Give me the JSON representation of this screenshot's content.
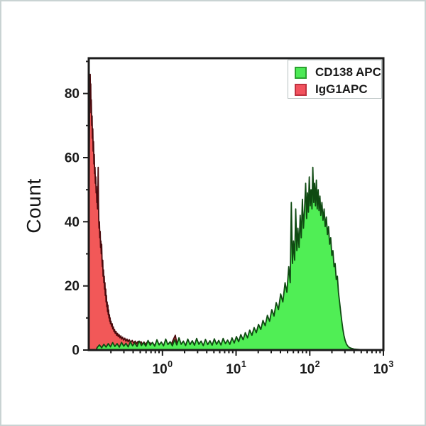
{
  "figure": {
    "background": "#ffffff",
    "frame_color": "#c9d3d3"
  },
  "legend": {
    "position": "top-right",
    "items": [
      {
        "label": "CD138 APC",
        "swatch_fill": "#4ce955",
        "swatch_border": "#2aa12f"
      },
      {
        "label": "IgG1APC",
        "swatch_fill": "#f2525e",
        "swatch_border": "#bf3240"
      }
    ]
  },
  "chart_data": {
    "type": "area",
    "subtype": "flow-cytometry-histogram",
    "title": "",
    "xlabel": "",
    "ylabel": "Count",
    "x_scale": "log10",
    "xlim_decades": [
      -1,
      3
    ],
    "ylim": [
      0,
      91
    ],
    "grid": false,
    "legend_position": "top-right",
    "axis_color": "#1c1c1c",
    "x_ticks": [
      {
        "base": "10",
        "exp": "0",
        "decade": 0
      },
      {
        "base": "10",
        "exp": "1",
        "decade": 1
      },
      {
        "base": "10",
        "exp": "2",
        "decade": 2
      },
      {
        "base": "10",
        "exp": "3",
        "decade": 3
      }
    ],
    "y_ticks": [
      {
        "value": 0,
        "label": "0"
      },
      {
        "value": 20,
        "label": "20"
      },
      {
        "value": 40,
        "label": "40"
      },
      {
        "value": 60,
        "label": "60"
      },
      {
        "value": 80,
        "label": "80"
      }
    ],
    "y_minor_ticks": [
      10,
      30,
      50,
      70,
      90
    ],
    "series": [
      {
        "name": "IgG1APC",
        "fill": "#f25858",
        "stroke": "#4a0a0d",
        "peak_value": 86,
        "peak_decade": -0.98,
        "points": [
          [
            -1.0,
            0
          ],
          [
            -0.996,
            40
          ],
          [
            -0.992,
            62
          ],
          [
            -0.988,
            76
          ],
          [
            -0.985,
            82
          ],
          [
            -0.981,
            86
          ],
          [
            -0.977,
            79
          ],
          [
            -0.973,
            83
          ],
          [
            -0.969,
            74
          ],
          [
            -0.965,
            78
          ],
          [
            -0.96,
            70
          ],
          [
            -0.955,
            73
          ],
          [
            -0.95,
            66
          ],
          [
            -0.945,
            69
          ],
          [
            -0.94,
            62
          ],
          [
            -0.935,
            65
          ],
          [
            -0.93,
            58
          ],
          [
            -0.925,
            61
          ],
          [
            -0.92,
            55
          ],
          [
            -0.915,
            57
          ],
          [
            -0.91,
            52
          ],
          [
            -0.905,
            54
          ],
          [
            -0.9,
            49
          ],
          [
            -0.895,
            51
          ],
          [
            -0.89,
            46
          ],
          [
            -0.885,
            48
          ],
          [
            -0.88,
            44
          ],
          [
            -0.876,
            50
          ],
          [
            -0.872,
            57
          ],
          [
            -0.868,
            46
          ],
          [
            -0.864,
            41
          ],
          [
            -0.86,
            38
          ],
          [
            -0.855,
            40
          ],
          [
            -0.85,
            35
          ],
          [
            -0.845,
            37
          ],
          [
            -0.84,
            32
          ],
          [
            -0.835,
            34
          ],
          [
            -0.83,
            30
          ],
          [
            -0.825,
            33
          ],
          [
            -0.82,
            28
          ],
          [
            -0.815,
            26
          ],
          [
            -0.81,
            28
          ],
          [
            -0.805,
            23
          ],
          [
            -0.8,
            25
          ],
          [
            -0.795,
            21
          ],
          [
            -0.79,
            23
          ],
          [
            -0.785,
            19
          ],
          [
            -0.78,
            21
          ],
          [
            -0.775,
            17
          ],
          [
            -0.77,
            19
          ],
          [
            -0.765,
            15
          ],
          [
            -0.76,
            17
          ],
          [
            -0.755,
            13.5
          ],
          [
            -0.75,
            15
          ],
          [
            -0.745,
            12
          ],
          [
            -0.74,
            14
          ],
          [
            -0.735,
            11
          ],
          [
            -0.73,
            12.5
          ],
          [
            -0.725,
            10
          ],
          [
            -0.72,
            11
          ],
          [
            -0.715,
            9
          ],
          [
            -0.71,
            10
          ],
          [
            -0.705,
            8.2
          ],
          [
            -0.698,
            9.0
          ],
          [
            -0.69,
            7.4
          ],
          [
            -0.682,
            8.2
          ],
          [
            -0.674,
            6.6
          ],
          [
            -0.666,
            7.2
          ],
          [
            -0.658,
            5.8
          ],
          [
            -0.65,
            6.4
          ],
          [
            -0.64,
            5.2
          ],
          [
            -0.63,
            5.8
          ],
          [
            -0.62,
            4.6
          ],
          [
            -0.61,
            5.2
          ],
          [
            -0.6,
            4.2
          ],
          [
            -0.588,
            4.8
          ],
          [
            -0.576,
            3.8
          ],
          [
            -0.564,
            4.4
          ],
          [
            -0.552,
            3.4
          ],
          [
            -0.54,
            4.0
          ],
          [
            -0.525,
            3.1
          ],
          [
            -0.51,
            3.7
          ],
          [
            -0.495,
            2.8
          ],
          [
            -0.48,
            3.4
          ],
          [
            -0.465,
            2.6
          ],
          [
            -0.45,
            3.2
          ],
          [
            -0.43,
            2.4
          ],
          [
            -0.41,
            3.0
          ],
          [
            -0.39,
            2.2
          ],
          [
            -0.37,
            2.8
          ],
          [
            -0.35,
            2.0
          ],
          [
            -0.33,
            2.7
          ],
          [
            -0.31,
            1.9
          ],
          [
            -0.29,
            2.6
          ],
          [
            -0.27,
            1.8
          ],
          [
            -0.25,
            2.5
          ],
          [
            -0.23,
            1.7
          ],
          [
            -0.21,
            2.4
          ],
          [
            -0.19,
            1.6
          ],
          [
            -0.17,
            2.3
          ],
          [
            -0.15,
            1.5
          ],
          [
            -0.13,
            2.2
          ],
          [
            -0.11,
            1.4
          ],
          [
            -0.09,
            2.1
          ],
          [
            -0.07,
            1.3
          ],
          [
            -0.05,
            2.0
          ],
          [
            -0.03,
            1.2
          ],
          [
            -0.01,
            1.9
          ],
          [
            0.01,
            1.1
          ],
          [
            0.035,
            1.8
          ],
          [
            0.06,
            1.0
          ],
          [
            0.085,
            1.9
          ],
          [
            0.11,
            1.1
          ],
          [
            0.135,
            2.6
          ],
          [
            0.16,
            3.8
          ],
          [
            0.175,
            4.6
          ],
          [
            0.19,
            2.8
          ],
          [
            0.21,
            1.5
          ],
          [
            0.235,
            2.3
          ],
          [
            0.26,
            1.1
          ],
          [
            0.285,
            1.9
          ],
          [
            0.31,
            0.9
          ],
          [
            0.34,
            1.5
          ],
          [
            0.37,
            0.7
          ],
          [
            0.4,
            1.1
          ],
          [
            0.43,
            0.5
          ],
          [
            0.465,
            0.2
          ],
          [
            0.5,
            0
          ]
        ]
      },
      {
        "name": "CD138 APC",
        "fill": "#50ee55",
        "stroke": "#0f4a12",
        "peak_value": 57,
        "peak_decade": 2.04,
        "points": [
          [
            -0.9,
            0
          ],
          [
            -0.885,
            0.8
          ],
          [
            -0.855,
            1.6
          ],
          [
            -0.825,
            0.7
          ],
          [
            -0.795,
            1.8
          ],
          [
            -0.765,
            0.9
          ],
          [
            -0.735,
            2.0
          ],
          [
            -0.705,
            1.0
          ],
          [
            -0.675,
            2.3
          ],
          [
            -0.645,
            1.1
          ],
          [
            -0.615,
            2.0
          ],
          [
            -0.585,
            0.9
          ],
          [
            -0.555,
            2.4
          ],
          [
            -0.525,
            1.2
          ],
          [
            -0.495,
            2.1
          ],
          [
            -0.465,
            1.0
          ],
          [
            -0.435,
            2.6
          ],
          [
            -0.405,
            1.3
          ],
          [
            -0.375,
            2.2
          ],
          [
            -0.345,
            1.1
          ],
          [
            -0.315,
            2.8
          ],
          [
            -0.285,
            1.4
          ],
          [
            -0.255,
            2.3
          ],
          [
            -0.225,
            1.2
          ],
          [
            -0.195,
            3.0
          ],
          [
            -0.165,
            1.5
          ],
          [
            -0.135,
            2.4
          ],
          [
            -0.105,
            1.2
          ],
          [
            -0.075,
            3.2
          ],
          [
            -0.045,
            1.6
          ],
          [
            -0.015,
            2.5
          ],
          [
            0.015,
            1.3
          ],
          [
            0.045,
            3.4
          ],
          [
            0.075,
            1.7
          ],
          [
            0.105,
            2.6
          ],
          [
            0.135,
            1.3
          ],
          [
            0.165,
            3.2
          ],
          [
            0.195,
            1.6
          ],
          [
            0.225,
            3.8
          ],
          [
            0.255,
            1.8
          ],
          [
            0.285,
            2.8
          ],
          [
            0.315,
            1.4
          ],
          [
            0.345,
            3.4
          ],
          [
            0.375,
            1.7
          ],
          [
            0.405,
            2.9
          ],
          [
            0.435,
            1.5
          ],
          [
            0.465,
            3.6
          ],
          [
            0.495,
            1.8
          ],
          [
            0.525,
            2.8
          ],
          [
            0.555,
            1.4
          ],
          [
            0.585,
            3.3
          ],
          [
            0.615,
            1.7
          ],
          [
            0.645,
            2.9
          ],
          [
            0.675,
            1.5
          ],
          [
            0.705,
            3.5
          ],
          [
            0.735,
            1.8
          ],
          [
            0.765,
            3.0
          ],
          [
            0.795,
            1.6
          ],
          [
            0.825,
            3.6
          ],
          [
            0.855,
            2.0
          ],
          [
            0.885,
            3.1
          ],
          [
            0.915,
            1.8
          ],
          [
            0.945,
            3.8
          ],
          [
            0.975,
            2.2
          ],
          [
            1.005,
            4.2
          ],
          [
            1.035,
            2.6
          ],
          [
            1.065,
            4.8
          ],
          [
            1.095,
            3.2
          ],
          [
            1.125,
            5.4
          ],
          [
            1.155,
            3.8
          ],
          [
            1.185,
            6.2
          ],
          [
            1.215,
            4.6
          ],
          [
            1.245,
            7.0
          ],
          [
            1.275,
            5.4
          ],
          [
            1.305,
            8.0
          ],
          [
            1.335,
            6.4
          ],
          [
            1.365,
            9.2
          ],
          [
            1.395,
            7.6
          ],
          [
            1.425,
            10.8
          ],
          [
            1.455,
            9.0
          ],
          [
            1.485,
            12.6
          ],
          [
            1.515,
            10.6
          ],
          [
            1.545,
            14.8
          ],
          [
            1.575,
            12.6
          ],
          [
            1.605,
            17.5
          ],
          [
            1.635,
            15.0
          ],
          [
            1.665,
            21.0
          ],
          [
            1.69,
            18.0
          ],
          [
            1.715,
            26.0
          ],
          [
            1.735,
            21.0
          ],
          [
            1.75,
            46.0
          ],
          [
            1.765,
            27.0
          ],
          [
            1.78,
            34.0
          ],
          [
            1.795,
            28.0
          ],
          [
            1.81,
            44.0
          ],
          [
            1.825,
            31.0
          ],
          [
            1.84,
            38.0
          ],
          [
            1.855,
            32.0
          ],
          [
            1.87,
            42.0
          ],
          [
            1.885,
            35.0
          ],
          [
            1.9,
            47.0
          ],
          [
            1.915,
            38.0
          ],
          [
            1.93,
            44.0
          ],
          [
            1.945,
            52.0
          ],
          [
            1.958,
            41.0
          ],
          [
            1.97,
            49.0
          ],
          [
            1.982,
            43.0
          ],
          [
            1.994,
            54.0
          ],
          [
            2.006,
            45.0
          ],
          [
            2.018,
            50.0
          ],
          [
            2.03,
            44.0
          ],
          [
            2.042,
            57.0
          ],
          [
            2.054,
            46.0
          ],
          [
            2.066,
            52.0
          ],
          [
            2.078,
            45.0
          ],
          [
            2.09,
            53.0
          ],
          [
            2.102,
            44.0
          ],
          [
            2.114,
            50.0
          ],
          [
            2.126,
            43.5
          ],
          [
            2.138,
            48.0
          ],
          [
            2.15,
            42.0
          ],
          [
            2.165,
            46.0
          ],
          [
            2.18,
            40.5
          ],
          [
            2.195,
            44.0
          ],
          [
            2.21,
            38.5
          ],
          [
            2.225,
            41.5
          ],
          [
            2.24,
            36.0
          ],
          [
            2.255,
            38.5
          ],
          [
            2.27,
            33.0
          ],
          [
            2.285,
            35.0
          ],
          [
            2.3,
            29.5
          ],
          [
            2.315,
            31.0
          ],
          [
            2.33,
            26.0
          ],
          [
            2.345,
            27.0
          ],
          [
            2.36,
            22.0
          ],
          [
            2.375,
            23.0
          ],
          [
            2.39,
            18.0
          ],
          [
            2.405,
            15.0
          ],
          [
            2.42,
            12.0
          ],
          [
            2.435,
            9.0
          ],
          [
            2.45,
            6.5
          ],
          [
            2.465,
            4.5
          ],
          [
            2.48,
            3.0
          ],
          [
            2.5,
            1.8
          ],
          [
            2.525,
            1.0
          ],
          [
            2.555,
            0.6
          ],
          [
            2.6,
            0.3
          ],
          [
            2.7,
            0.1
          ],
          [
            3.0,
            0
          ]
        ]
      }
    ]
  }
}
